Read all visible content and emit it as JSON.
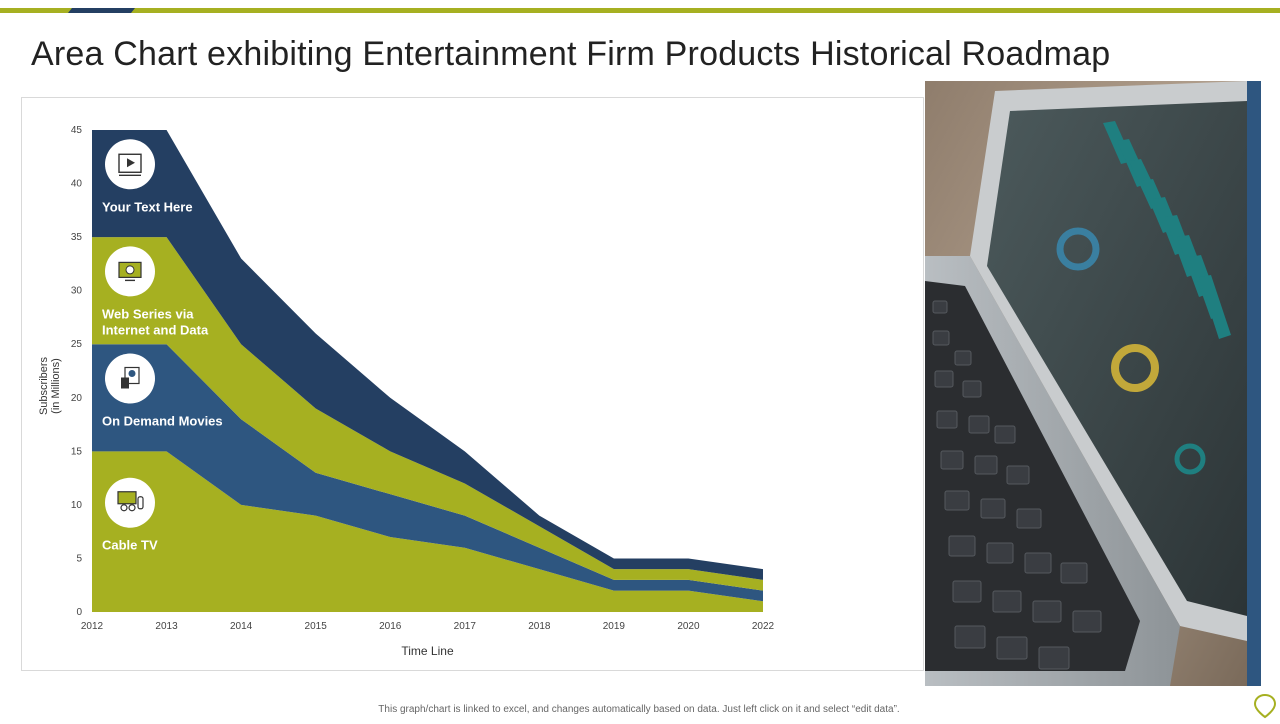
{
  "page": {
    "title": "Area Chart exhibiting Entertainment Firm Products Historical Roadmap",
    "footnote": "This graph/chart is linked to excel, and changes automatically based on data. Just left click on it and select “edit data”."
  },
  "colors": {
    "navy": "#243f62",
    "blue": "#2e5680",
    "olive": "#a6b021",
    "topbar_olive": "#a6b021",
    "topbar_navy": "#243f62",
    "accent_strip": "#2e5680"
  },
  "photo": {
    "icon": "laptop-dashboard-photo"
  },
  "logo": {
    "icon": "map-pin-logo-icon"
  },
  "chart_data": {
    "type": "area",
    "stacked": true,
    "x": [
      2012,
      2013,
      2014,
      2015,
      2016,
      2017,
      2018,
      2019,
      2020,
      2022
    ],
    "xlabel": "Time Line",
    "ylabel": "Subscribers\n(in Millions)",
    "ylim": [
      0,
      45
    ],
    "yticks": [
      0,
      5,
      10,
      15,
      20,
      25,
      30,
      35,
      40,
      45
    ],
    "grid": false,
    "series": [
      {
        "name": "Cable TV",
        "values": [
          15,
          15,
          10,
          9,
          7,
          6,
          4,
          2,
          2,
          1
        ],
        "color": "#a6b021",
        "icon": "presentation-icon"
      },
      {
        "name": "On Demand Movies",
        "values": [
          10,
          10,
          8,
          4,
          4,
          3,
          2,
          1,
          1,
          1
        ],
        "color": "#2e5680",
        "icon": "movie-reel-icon"
      },
      {
        "name": "Web Series via Internet and Data",
        "values": [
          10,
          10,
          7,
          6,
          4,
          3,
          2,
          1,
          1,
          1
        ],
        "color": "#a6b021",
        "icon": "monitor-dollar-icon"
      },
      {
        "name": "Your Text Here",
        "values": [
          10,
          10,
          8,
          7,
          5,
          3,
          1,
          1,
          1,
          1
        ],
        "color": "#243f62",
        "icon": "video-player-icon"
      }
    ]
  }
}
